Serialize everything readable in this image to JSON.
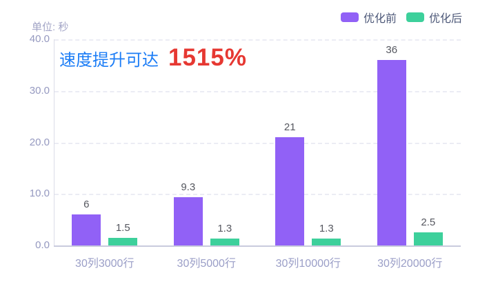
{
  "annotation": {
    "prefix": "速度提升可达",
    "value": "1515%",
    "prefix_color": "#1c7df6",
    "value_color": "#e63832"
  },
  "chart_data": {
    "type": "bar",
    "title": "",
    "xlabel": "",
    "ylabel": "单位: 秒",
    "categories": [
      "30列3000行",
      "30列5000行",
      "30列10000行",
      "30列20000行"
    ],
    "series": [
      {
        "name": "优化前",
        "color": "#9161f6",
        "values": [
          6,
          9.3,
          21,
          36
        ]
      },
      {
        "name": "优化后",
        "color": "#3dd09b",
        "values": [
          1.5,
          1.3,
          1.3,
          2.5
        ]
      }
    ],
    "ylim": [
      0,
      40
    ],
    "yticks": [
      0,
      10,
      20,
      30,
      40
    ],
    "ytick_labels": [
      "0.0",
      "10.0",
      "20.0",
      "30.0",
      "40.0"
    ],
    "grid": true,
    "grid_style": "dashed-horizontal",
    "data_labels": true,
    "legend_position": "top-right",
    "annotations": [
      "速度提升可达 1515%"
    ]
  }
}
